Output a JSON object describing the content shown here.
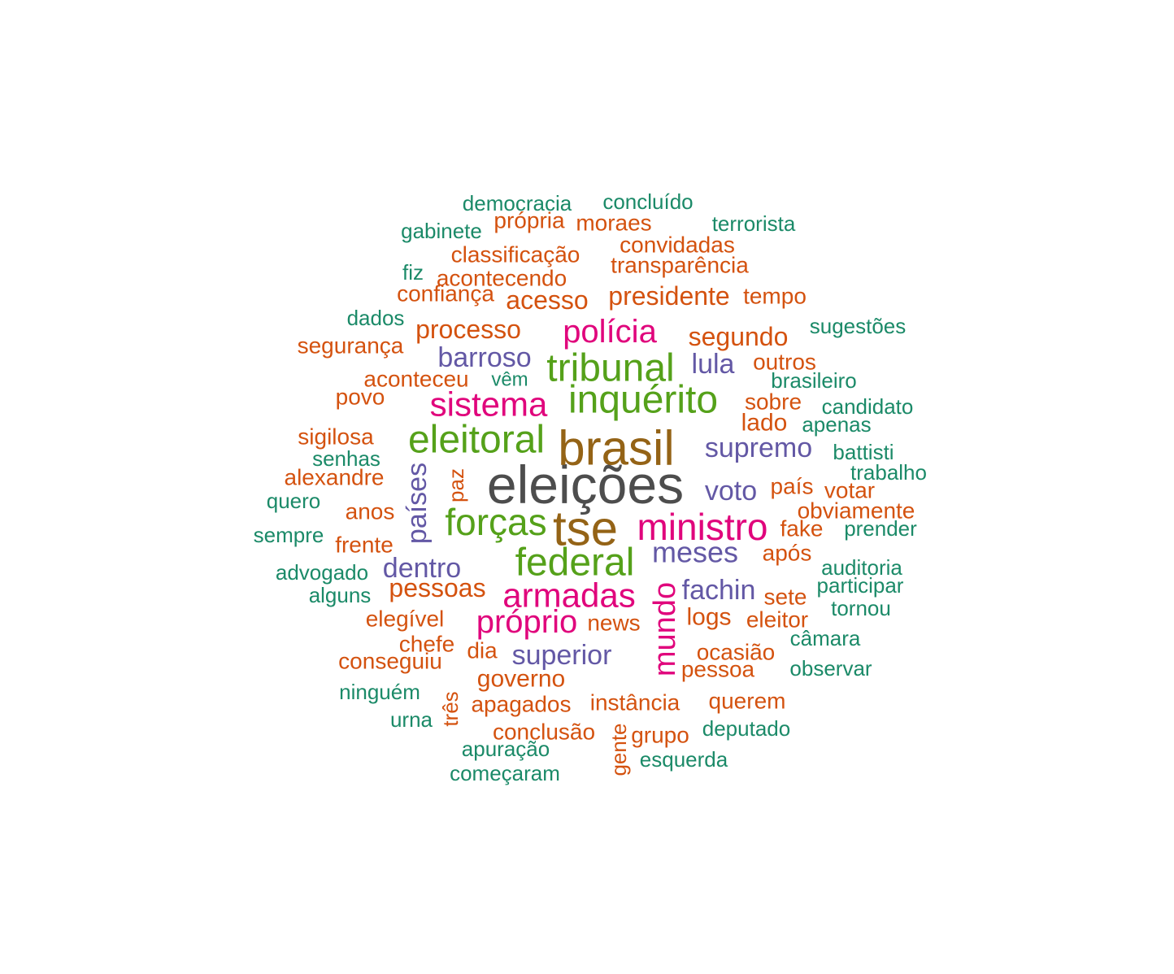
{
  "chart_data": {
    "type": "wordcloud",
    "palette": {
      "dark_gray": "#4d4d4d",
      "brown": "#946316",
      "green": "#55a11a",
      "magenta": "#e0057c",
      "purple": "#6358a5",
      "orange": "#d4520f",
      "teal": "#1b8a68"
    },
    "words": [
      {
        "text": "eleições",
        "color": "dark_gray"
      },
      {
        "text": "brasil",
        "color": "brown"
      },
      {
        "text": "tse",
        "color": "brown"
      },
      {
        "text": "federal",
        "color": "green"
      },
      {
        "text": "inquérito",
        "color": "green"
      },
      {
        "text": "tribunal",
        "color": "green"
      },
      {
        "text": "eleitoral",
        "color": "green"
      },
      {
        "text": "forças",
        "color": "green"
      },
      {
        "text": "ministro",
        "color": "magenta"
      },
      {
        "text": "armadas",
        "color": "magenta"
      },
      {
        "text": "sistema",
        "color": "magenta"
      },
      {
        "text": "próprio",
        "color": "magenta"
      },
      {
        "text": "polícia",
        "color": "magenta"
      },
      {
        "text": "mundo",
        "color": "magenta"
      },
      {
        "text": "meses",
        "color": "purple"
      },
      {
        "text": "supremo",
        "color": "purple"
      },
      {
        "text": "superior",
        "color": "purple"
      },
      {
        "text": "voto",
        "color": "purple"
      },
      {
        "text": "barroso",
        "color": "purple"
      },
      {
        "text": "fachin",
        "color": "purple"
      },
      {
        "text": "dentro",
        "color": "purple"
      },
      {
        "text": "países",
        "color": "purple"
      },
      {
        "text": "lula",
        "color": "purple"
      },
      {
        "text": "presidente",
        "color": "orange"
      },
      {
        "text": "pessoas",
        "color": "orange"
      },
      {
        "text": "processo",
        "color": "orange"
      },
      {
        "text": "segundo",
        "color": "orange"
      },
      {
        "text": "acesso",
        "color": "orange"
      },
      {
        "text": "governo",
        "color": "orange"
      },
      {
        "text": "transparência",
        "color": "orange"
      },
      {
        "text": "classificação",
        "color": "orange"
      },
      {
        "text": "instância",
        "color": "orange"
      },
      {
        "text": "elegível",
        "color": "orange"
      },
      {
        "text": "ocasião",
        "color": "orange"
      },
      {
        "text": "logs",
        "color": "orange"
      },
      {
        "text": "confiança",
        "color": "orange"
      },
      {
        "text": "país",
        "color": "orange"
      },
      {
        "text": "outros",
        "color": "orange"
      },
      {
        "text": "apagados",
        "color": "orange"
      },
      {
        "text": "conclusão",
        "color": "orange"
      },
      {
        "text": "sobre",
        "color": "orange"
      },
      {
        "text": "lado",
        "color": "orange"
      },
      {
        "text": "aconteceu",
        "color": "orange"
      },
      {
        "text": "acontecendo",
        "color": "orange"
      },
      {
        "text": "convidadas",
        "color": "orange"
      },
      {
        "text": "obviamente",
        "color": "orange"
      },
      {
        "text": "moraes",
        "color": "orange"
      },
      {
        "text": "própria",
        "color": "orange"
      },
      {
        "text": "segurança",
        "color": "orange"
      },
      {
        "text": "alexandre",
        "color": "orange"
      },
      {
        "text": "sigilosa",
        "color": "orange"
      },
      {
        "text": "conseguiu",
        "color": "orange"
      },
      {
        "text": "eleitor",
        "color": "orange"
      },
      {
        "text": "pessoa",
        "color": "orange"
      },
      {
        "text": "querem",
        "color": "orange"
      },
      {
        "text": "tempo",
        "color": "orange"
      },
      {
        "text": "news",
        "color": "orange"
      },
      {
        "text": "chefe",
        "color": "orange"
      },
      {
        "text": "frente",
        "color": "orange"
      },
      {
        "text": "anos",
        "color": "orange"
      },
      {
        "text": "povo",
        "color": "orange"
      },
      {
        "text": "votar",
        "color": "orange"
      },
      {
        "text": "fake",
        "color": "orange"
      },
      {
        "text": "após",
        "color": "orange"
      },
      {
        "text": "sete",
        "color": "orange"
      },
      {
        "text": "dia",
        "color": "orange"
      },
      {
        "text": "grupo",
        "color": "orange"
      },
      {
        "text": "paz",
        "color": "orange"
      },
      {
        "text": "três",
        "color": "orange"
      },
      {
        "text": "gente",
        "color": "orange"
      },
      {
        "text": "democracia",
        "color": "teal"
      },
      {
        "text": "concluído",
        "color": "teal"
      },
      {
        "text": "terrorista",
        "color": "teal"
      },
      {
        "text": "gabinete",
        "color": "teal"
      },
      {
        "text": "fiz",
        "color": "teal"
      },
      {
        "text": "dados",
        "color": "teal"
      },
      {
        "text": "sugestões",
        "color": "teal"
      },
      {
        "text": "brasileiro",
        "color": "teal"
      },
      {
        "text": "candidato",
        "color": "teal"
      },
      {
        "text": "apenas",
        "color": "teal"
      },
      {
        "text": "battisti",
        "color": "teal"
      },
      {
        "text": "trabalho",
        "color": "teal"
      },
      {
        "text": "senhas",
        "color": "teal"
      },
      {
        "text": "quero",
        "color": "teal"
      },
      {
        "text": "sempre",
        "color": "teal"
      },
      {
        "text": "prender",
        "color": "teal"
      },
      {
        "text": "advogado",
        "color": "teal"
      },
      {
        "text": "alguns",
        "color": "teal"
      },
      {
        "text": "auditoria",
        "color": "teal"
      },
      {
        "text": "participar",
        "color": "teal"
      },
      {
        "text": "tornou",
        "color": "teal"
      },
      {
        "text": "câmara",
        "color": "teal"
      },
      {
        "text": "observar",
        "color": "teal"
      },
      {
        "text": "ninguém",
        "color": "teal"
      },
      {
        "text": "urna",
        "color": "teal"
      },
      {
        "text": "deputado",
        "color": "teal"
      },
      {
        "text": "apuração",
        "color": "teal"
      },
      {
        "text": "esquerda",
        "color": "teal"
      },
      {
        "text": "começaram",
        "color": "teal"
      },
      {
        "text": "vêm",
        "color": "teal"
      }
    ]
  }
}
